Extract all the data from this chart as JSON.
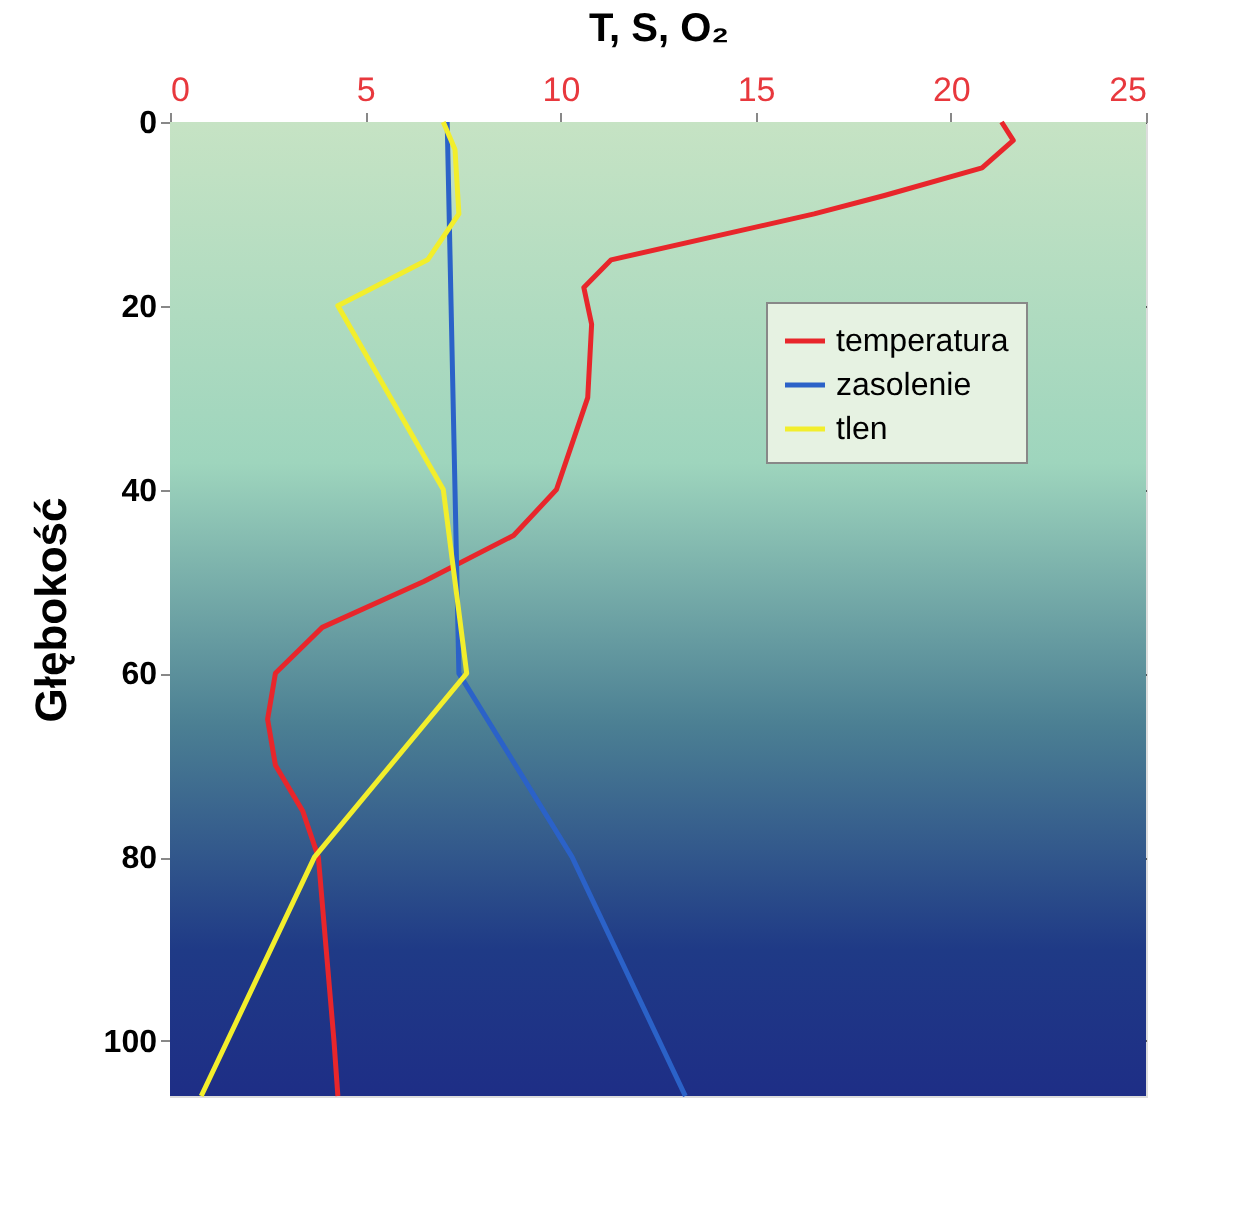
{
  "chart_data": {
    "type": "line",
    "xlabel": "T, S, O₂",
    "ylabel": "Głębokość",
    "xlim": [
      0,
      25
    ],
    "xticks": [
      0,
      5,
      10,
      15,
      20,
      25
    ],
    "ylim": [
      106,
      0
    ],
    "yticks": [
      0,
      20,
      40,
      60,
      80,
      100
    ],
    "grid": "y",
    "legend": "top right",
    "marker": "none",
    "line_style": "solid",
    "series": [
      {
        "name": "temperatura",
        "color": "#e8262b",
        "x": [
          21.3,
          21.6,
          20.8,
          18.3,
          16.5,
          11.3,
          10.6,
          10.8,
          10.7,
          10.3,
          9.9,
          8.8,
          6.5,
          3.9,
          2.7,
          2.5,
          2.7,
          3.4,
          3.8,
          4.0,
          4.2,
          4.3
        ],
        "values": [
          0,
          2,
          5,
          8,
          10,
          15,
          18,
          22,
          30,
          35,
          40,
          45,
          50,
          55,
          60,
          65,
          70,
          75,
          80,
          90,
          100,
          106
        ]
      },
      {
        "name": "zasolenie",
        "color": "#2b62c8",
        "x": [
          7.1,
          7.2,
          7.3,
          7.4,
          10.3,
          13.2
        ],
        "values": [
          0,
          20,
          40,
          60,
          80,
          106
        ]
      },
      {
        "name": "tlen",
        "color": "#f2ee2c",
        "x": [
          7.0,
          7.3,
          7.4,
          6.6,
          4.3,
          7.0,
          7.6,
          3.7,
          0.8
        ],
        "values": [
          0,
          3,
          10,
          15,
          20,
          40,
          60,
          80,
          106
        ]
      }
    ]
  }
}
